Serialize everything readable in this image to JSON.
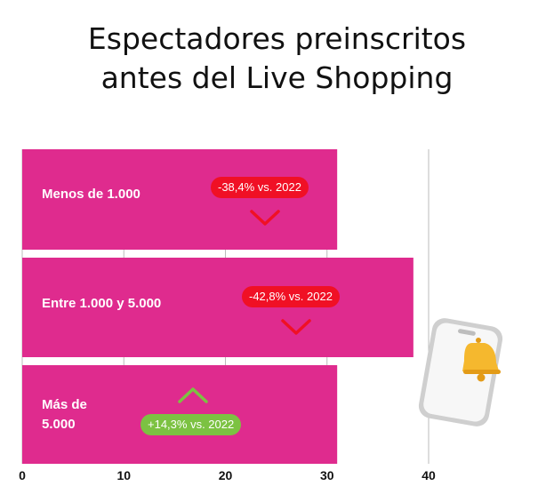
{
  "title_lines": [
    "Espectadores preinscritos",
    "antes del Live Shopping"
  ],
  "colors": {
    "bar": "#df2b8e",
    "negative": "#f01025",
    "positive": "#7cc242",
    "grid": "#bbbbbb",
    "text": "#111111"
  },
  "chart_data": {
    "type": "bar",
    "orientation": "horizontal",
    "title": "Espectadores preinscritos antes del Live Shopping",
    "categories": [
      "Menos de 1.000",
      "Entre 1.000  y 5.000",
      "Más de\n5.000"
    ],
    "values": [
      31,
      38.5,
      31
    ],
    "xlim": [
      0,
      40
    ],
    "ticks": [
      "0",
      "10",
      "20",
      "30",
      "40"
    ],
    "grid": true,
    "annotations": [
      {
        "text": "-38,4% vs. 2022",
        "direction": "down",
        "color": "#f01025"
      },
      {
        "text": "-42,8% vs. 2022",
        "direction": "down",
        "color": "#f01025"
      },
      {
        "text": "+14,3% vs. 2022",
        "direction": "up",
        "color": "#7cc242"
      }
    ]
  },
  "decoration": {
    "icon": "smartphone-bell-icon"
  }
}
